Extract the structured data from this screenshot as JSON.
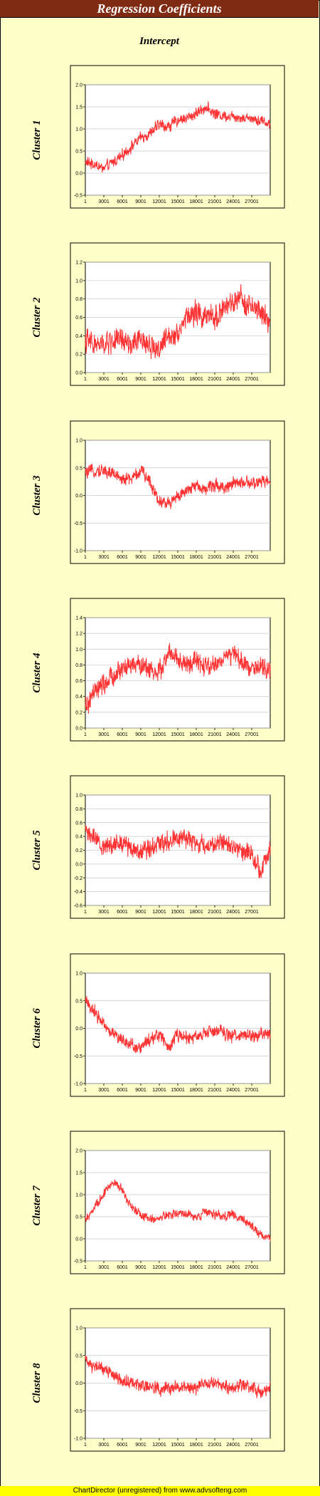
{
  "header": {
    "title": "Regression Coefficients",
    "subtitle": "Intercept"
  },
  "footer": {
    "text": "ChartDirector (unregistered) from www.advsofteng.com"
  },
  "colors": {
    "line": "#ff3333",
    "plot_bg": "#ffffff",
    "panel_bg": "#ffffc9",
    "title_bg": "#7f2a12",
    "grid": "#c8c8c8",
    "footer_bg": "#ffff00"
  },
  "chart_data": [
    {
      "type": "line",
      "ylabel": "Cluster 1",
      "ylim": [
        -0.5,
        2.0
      ],
      "yticks": [
        "-0.5",
        "0.0",
        "0.5",
        "1.0",
        "1.5",
        "2.0"
      ],
      "xticks": [
        "1",
        "3001",
        "6001",
        "9001",
        "12001",
        "15001",
        "18001",
        "21001",
        "24001",
        "27001"
      ],
      "xlim": [
        1,
        30000
      ],
      "series": [
        {
          "x": [
            1,
            1500,
            3000,
            4500,
            6000,
            7500,
            9000,
            10500,
            12000,
            13500,
            15000,
            16500,
            18000,
            19500,
            21000,
            22500,
            24000,
            25500,
            27000,
            28500,
            30000
          ],
          "values": [
            0.25,
            0.2,
            0.1,
            0.25,
            0.4,
            0.6,
            0.8,
            0.9,
            1.1,
            1.05,
            1.2,
            1.25,
            1.35,
            1.5,
            1.35,
            1.3,
            1.3,
            1.25,
            1.25,
            1.2,
            1.1
          ],
          "noise": 0.12
        }
      ]
    },
    {
      "type": "line",
      "ylabel": "Cluster 2",
      "ylim": [
        0.0,
        1.2
      ],
      "yticks": [
        "0.0",
        "0.2",
        "0.4",
        "0.6",
        "0.8",
        "1.0",
        "1.2"
      ],
      "xticks": [
        "1",
        "3001",
        "6001",
        "9001",
        "12001",
        "15001",
        "18001",
        "21001",
        "24001",
        "27001"
      ],
      "xlim": [
        1,
        30000
      ],
      "series": [
        {
          "x": [
            1,
            1500,
            3000,
            4500,
            6000,
            7500,
            9000,
            10500,
            12000,
            13500,
            15000,
            16500,
            18000,
            19500,
            21000,
            22500,
            24000,
            25500,
            27000,
            28500,
            30000
          ],
          "values": [
            0.35,
            0.3,
            0.3,
            0.35,
            0.35,
            0.3,
            0.35,
            0.3,
            0.25,
            0.4,
            0.45,
            0.6,
            0.65,
            0.6,
            0.6,
            0.7,
            0.75,
            0.8,
            0.7,
            0.65,
            0.55
          ],
          "noise": 0.12
        }
      ]
    },
    {
      "type": "line",
      "ylabel": "Cluster 3",
      "ylim": [
        -1.0,
        1.0
      ],
      "yticks": [
        "-1.0",
        "-0.5",
        "0.0",
        "0.5",
        "1.0"
      ],
      "xticks": [
        "1",
        "3001",
        "6001",
        "9001",
        "12001",
        "15001",
        "18001",
        "21001",
        "24001",
        "27001"
      ],
      "xlim": [
        1,
        30000
      ],
      "series": [
        {
          "x": [
            1,
            1500,
            3000,
            4500,
            6000,
            7500,
            9000,
            10500,
            12000,
            13500,
            15000,
            16500,
            18000,
            19500,
            21000,
            22500,
            24000,
            25500,
            27000,
            28500,
            30000
          ],
          "values": [
            0.4,
            0.45,
            0.45,
            0.4,
            0.3,
            0.3,
            0.45,
            0.25,
            -0.1,
            -0.15,
            0.0,
            0.05,
            0.2,
            0.1,
            0.2,
            0.15,
            0.2,
            0.25,
            0.2,
            0.25,
            0.25
          ],
          "noise": 0.11
        }
      ]
    },
    {
      "type": "line",
      "ylabel": "Cluster 4",
      "ylim": [
        0.0,
        1.4
      ],
      "yticks": [
        "0.0",
        "0.2",
        "0.4",
        "0.6",
        "0.8",
        "1.0",
        "1.2",
        "1.4"
      ],
      "xticks": [
        "1",
        "3001",
        "6001",
        "9001",
        "12001",
        "15001",
        "18001",
        "21001",
        "24001",
        "27001"
      ],
      "xlim": [
        1,
        30000
      ],
      "series": [
        {
          "x": [
            1,
            1500,
            3000,
            4500,
            6000,
            7500,
            9000,
            10500,
            12000,
            13500,
            15000,
            16500,
            18000,
            19500,
            21000,
            22500,
            24000,
            25500,
            27000,
            28500,
            30000
          ],
          "values": [
            0.25,
            0.45,
            0.55,
            0.65,
            0.75,
            0.8,
            0.8,
            0.75,
            0.7,
            0.95,
            0.85,
            0.8,
            0.85,
            0.75,
            0.8,
            0.9,
            0.95,
            0.8,
            0.8,
            0.75,
            0.75
          ],
          "noise": 0.12
        }
      ]
    },
    {
      "type": "line",
      "ylabel": "Cluster 5",
      "ylim": [
        -0.6,
        1.0
      ],
      "yticks": [
        "-0.6",
        "-0.4",
        "-0.2",
        "0.0",
        "0.2",
        "0.4",
        "0.6",
        "0.8",
        "1.0"
      ],
      "xticks": [
        "1",
        "3001",
        "6001",
        "9001",
        "12001",
        "15001",
        "18001",
        "21001",
        "24001",
        "27001"
      ],
      "xlim": [
        1,
        30000
      ],
      "series": [
        {
          "x": [
            1,
            1500,
            3000,
            4500,
            6000,
            7500,
            9000,
            10500,
            12000,
            13500,
            15000,
            16500,
            18000,
            19500,
            21000,
            22500,
            24000,
            25500,
            27000,
            28500,
            30000
          ],
          "values": [
            0.5,
            0.35,
            0.25,
            0.3,
            0.3,
            0.25,
            0.2,
            0.25,
            0.3,
            0.35,
            0.4,
            0.35,
            0.3,
            0.25,
            0.3,
            0.3,
            0.25,
            0.2,
            0.15,
            -0.1,
            0.2
          ],
          "noise": 0.13
        }
      ]
    },
    {
      "type": "line",
      "ylabel": "Cluster 6",
      "ylim": [
        -1.0,
        1.0
      ],
      "yticks": [
        "-1.0",
        "-0.5",
        "0.0",
        "0.5",
        "1.0"
      ],
      "xticks": [
        "1",
        "3001",
        "6001",
        "9001",
        "12001",
        "15001",
        "18001",
        "21001",
        "24001",
        "27001"
      ],
      "xlim": [
        1,
        30000
      ],
      "series": [
        {
          "x": [
            1,
            1500,
            3000,
            4500,
            6000,
            7500,
            9000,
            10500,
            12000,
            13500,
            15000,
            16500,
            18000,
            19500,
            21000,
            22500,
            24000,
            25500,
            27000,
            28500,
            30000
          ],
          "values": [
            0.5,
            0.3,
            0.1,
            -0.1,
            -0.2,
            -0.3,
            -0.35,
            -0.2,
            -0.1,
            -0.35,
            -0.1,
            -0.2,
            -0.15,
            -0.1,
            -0.05,
            -0.1,
            -0.15,
            -0.1,
            -0.15,
            -0.1,
            -0.1
          ],
          "noise": 0.11
        }
      ]
    },
    {
      "type": "line",
      "ylabel": "Cluster 7",
      "ylim": [
        -0.5,
        2.0
      ],
      "yticks": [
        "-0.5",
        "0.0",
        "0.5",
        "1.0",
        "1.5",
        "2.0"
      ],
      "xticks": [
        "1",
        "3001",
        "6001",
        "9001",
        "12001",
        "15001",
        "18001",
        "21001",
        "24001",
        "27001"
      ],
      "xlim": [
        1,
        30000
      ],
      "series": [
        {
          "x": [
            1,
            1500,
            3000,
            4500,
            6000,
            7500,
            9000,
            10500,
            12000,
            13500,
            15000,
            16500,
            18000,
            19500,
            21000,
            22500,
            24000,
            25500,
            27000,
            28500,
            30000
          ],
          "values": [
            0.4,
            0.7,
            1.0,
            1.3,
            1.1,
            0.7,
            0.55,
            0.45,
            0.45,
            0.55,
            0.6,
            0.55,
            0.5,
            0.6,
            0.55,
            0.5,
            0.55,
            0.45,
            0.3,
            0.1,
            0.0
          ],
          "noise": 0.1
        }
      ]
    },
    {
      "type": "line",
      "ylabel": "Cluster 8",
      "ylim": [
        -1.0,
        1.0
      ],
      "yticks": [
        "-1.0",
        "-0.5",
        "0.0",
        "0.5",
        "1.0"
      ],
      "xticks": [
        "1",
        "3001",
        "6001",
        "9001",
        "12001",
        "15001",
        "18001",
        "21001",
        "24001",
        "27001"
      ],
      "xlim": [
        1,
        30000
      ],
      "series": [
        {
          "x": [
            1,
            1500,
            3000,
            4500,
            6000,
            7500,
            9000,
            10500,
            12000,
            13500,
            15000,
            16500,
            18000,
            19500,
            21000,
            22500,
            24000,
            25500,
            27000,
            28500,
            30000
          ],
          "values": [
            0.4,
            0.3,
            0.25,
            0.15,
            0.05,
            0.0,
            -0.05,
            -0.05,
            -0.1,
            -0.1,
            -0.05,
            -0.1,
            -0.1,
            0.0,
            0.05,
            -0.05,
            -0.1,
            -0.05,
            -0.1,
            -0.15,
            -0.1
          ],
          "noise": 0.11
        }
      ]
    }
  ]
}
